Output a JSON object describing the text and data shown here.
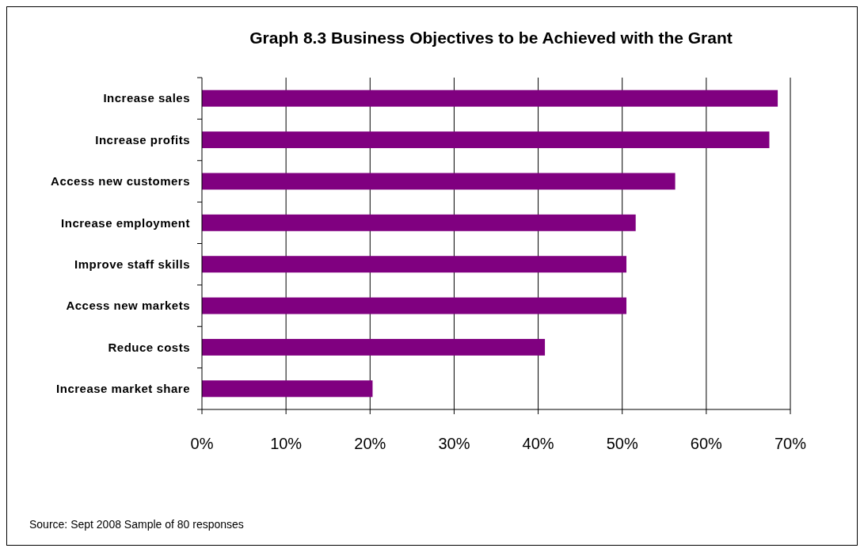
{
  "chart_data": {
    "type": "bar",
    "orientation": "horizontal",
    "title": "Graph 8.3 Business Objectives to be Achieved with the Grant",
    "categories": [
      "Increase sales",
      "Increase profits",
      "Access new customers",
      "Increase employment",
      "Improve staff skills",
      "Access new markets",
      "Reduce costs",
      "Increase market share"
    ],
    "values": [
      68.5,
      67.5,
      56.3,
      51.6,
      50.5,
      50.5,
      40.8,
      20.3
    ],
    "color": "#800080",
    "xlim": [
      0,
      70
    ],
    "xticks": [
      {
        "value": 0,
        "label": "0%"
      },
      {
        "value": 10,
        "label": "10%"
      },
      {
        "value": 20,
        "label": "20%"
      },
      {
        "value": 30,
        "label": "30%"
      },
      {
        "value": 40,
        "label": "40%"
      },
      {
        "value": 50,
        "label": "50%"
      },
      {
        "value": 60,
        "label": "60%"
      },
      {
        "value": 70,
        "label": "70%"
      }
    ],
    "grid": "x",
    "annotations": [
      "Source: Sept 2008  Sample of 80 responses"
    ]
  }
}
